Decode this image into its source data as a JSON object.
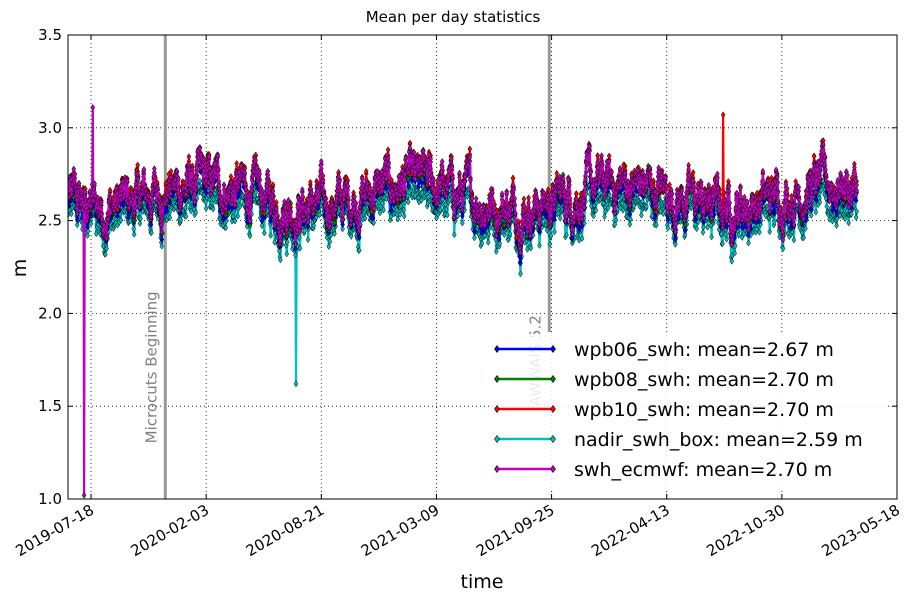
{
  "chart_data": {
    "type": "line",
    "title": "Mean per day statistics",
    "xlabel": "time",
    "ylabel": "m",
    "xlim": [
      "2019-06-08",
      "2023-05-18"
    ],
    "ylim": [
      1.0,
      3.5
    ],
    "grid": true,
    "grid_style": "dotted",
    "legend_position": "lower-right",
    "x_ticks": [
      "2019-07-18",
      "2020-02-03",
      "2020-08-21",
      "2021-03-09",
      "2021-09-25",
      "2022-04-13",
      "2022-10-30",
      "2023-05-18"
    ],
    "y_ticks": [
      "1.0",
      "1.5",
      "2.0",
      "2.5",
      "3.0",
      "3.5"
    ],
    "annotations": [
      {
        "label": "Microcuts Beginning",
        "x": "2019-11-24",
        "color": "#999999"
      },
      {
        "label": "AWWAIS 5.2",
        "x": "2021-09-21",
        "color": "#999999"
      }
    ],
    "data_range": [
      "2019-06-08",
      "2023-03-09"
    ],
    "series": [
      {
        "name": "wpb06_swh: mean=2.67 m",
        "color": "#0000ff",
        "mean": 2.67
      },
      {
        "name": "wpb08_swh: mean=2.70 m",
        "color": "#008000",
        "mean": 2.7
      },
      {
        "name": "wpb10_swh: mean=2.70 m",
        "color": "#ff0000",
        "mean": 2.7
      },
      {
        "name": "nadir_swh_box: mean=2.59 m",
        "color": "#00bfbf",
        "mean": 2.59
      },
      {
        "name": "swh_ecmwf: mean=2.70 m",
        "color": "#bf00bf",
        "mean": 2.7
      }
    ],
    "notable_points": [
      {
        "series": "swh_ecmwf: mean=2.70 m",
        "x": "2019-07-06",
        "y": 1.02
      },
      {
        "series": "nadir_swh_box: mean=2.59 m",
        "x": "2020-07-08",
        "y": 1.62
      },
      {
        "series": "wpb10_swh: mean=2.70 m",
        "x": "2022-07-20",
        "y": 3.07
      },
      {
        "series": "swh_ecmwf: mean=2.70 m",
        "x": "2019-07-21",
        "y": 3.11
      }
    ]
  }
}
